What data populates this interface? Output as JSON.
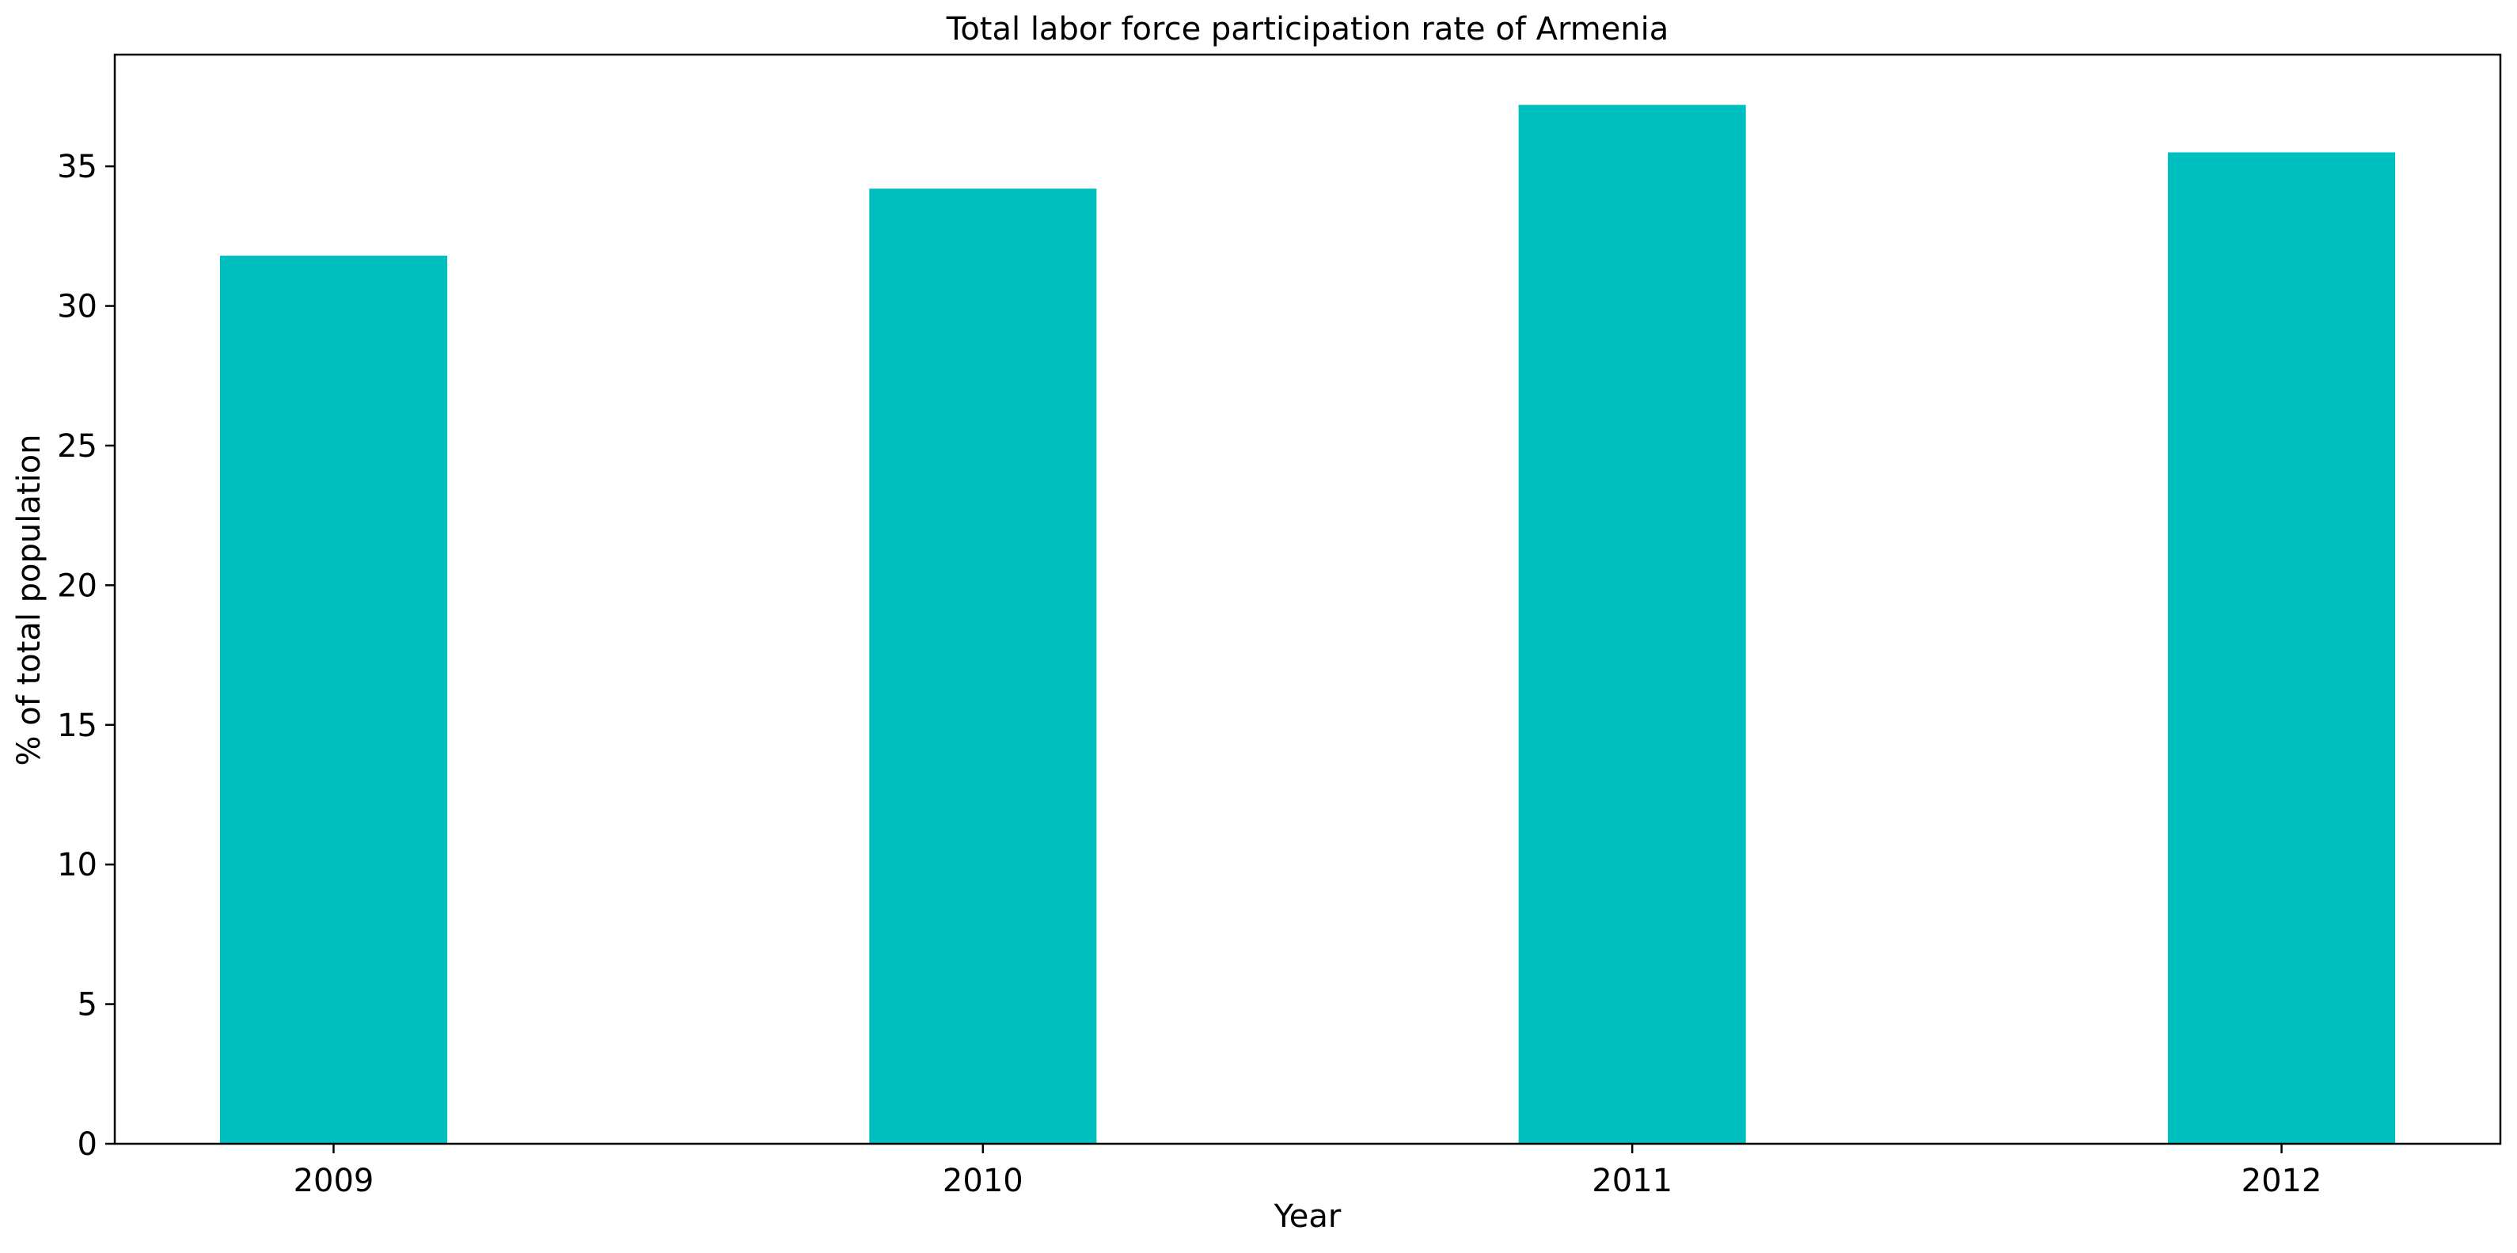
{
  "chart_data": {
    "type": "bar",
    "title": "Total labor force participation rate of Armenia",
    "xlabel": "Year",
    "ylabel": "% of total population",
    "categories": [
      "2009",
      "2010",
      "2011",
      "2012"
    ],
    "values": [
      31.8,
      34.2,
      37.2,
      35.5
    ],
    "ylim": [
      0,
      39
    ],
    "yticks": [
      0,
      5,
      10,
      15,
      20,
      25,
      30,
      35
    ],
    "grid": false,
    "legend": "none",
    "bar_color": "#00BFBF"
  }
}
